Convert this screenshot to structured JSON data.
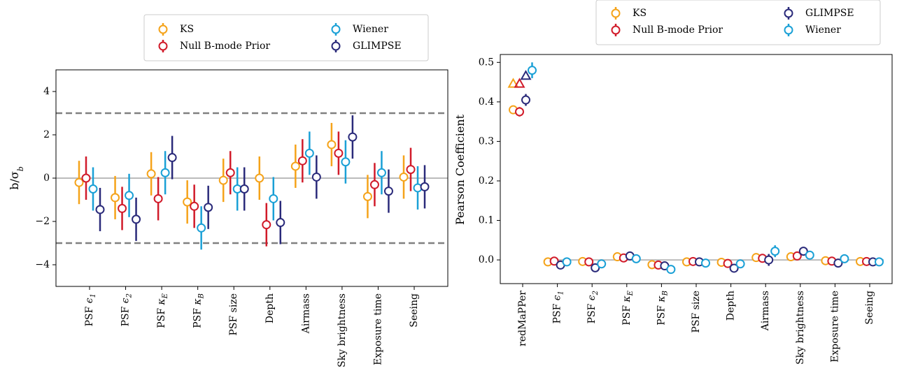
{
  "colors": {
    "KS": "#f5a31a",
    "Null B-mode Prior": "#d11b2a",
    "Wiener": "#1aa0d6",
    "GLIMPSE": "#2a2a7a",
    "reference_line": "#bbbbbb",
    "threshold_line": "#808080"
  },
  "chart_data": [
    {
      "type": "scatter",
      "error_bars": true,
      "ylabel": "b/σ_b",
      "ylabel_main": "b/σ",
      "ylabel_sub": "b",
      "xlabel": "",
      "ylim": [
        -5,
        5
      ],
      "yticks": [
        -4,
        -2,
        0,
        2,
        4
      ],
      "ytick_labels": [
        "−4",
        "−2",
        "0",
        "2",
        "4"
      ],
      "hlines": [
        {
          "y": 0,
          "style": "solid",
          "color": "reference_line"
        },
        {
          "y": 3,
          "style": "dashed",
          "color": "threshold_line"
        },
        {
          "y": -3,
          "style": "dashed",
          "color": "threshold_line"
        }
      ],
      "grid": false,
      "legend_position": "above-right",
      "legend": [
        "KS",
        "Null B-mode Prior",
        "Wiener",
        "GLIMPSE"
      ],
      "categories": [
        {
          "base": "PSF ",
          "math": "ϵ",
          "sub": "1"
        },
        {
          "base": "PSF ",
          "math": "ϵ",
          "sub": "2"
        },
        {
          "base": "PSF ",
          "math": "κ",
          "sub": "E"
        },
        {
          "base": "PSF ",
          "math": "κ",
          "sub": "B"
        },
        {
          "base": "PSF size",
          "math": "",
          "sub": ""
        },
        {
          "base": "Depth",
          "math": "",
          "sub": ""
        },
        {
          "base": "Airmass",
          "math": "",
          "sub": ""
        },
        {
          "base": "Sky brightness",
          "math": "",
          "sub": ""
        },
        {
          "base": "Exposure time",
          "math": "",
          "sub": ""
        },
        {
          "base": "Seeing",
          "math": "",
          "sub": ""
        }
      ],
      "series": [
        {
          "name": "KS",
          "values": [
            -0.2,
            -0.9,
            0.2,
            -1.1,
            -0.1,
            0.0,
            0.55,
            1.55,
            -0.85,
            0.05
          ],
          "errors": [
            1.0,
            1.0,
            1.0,
            1.0,
            1.0,
            1.0,
            1.0,
            1.0,
            1.0,
            1.0
          ]
        },
        {
          "name": "Null B-mode Prior",
          "values": [
            0.0,
            -1.4,
            -0.95,
            -1.3,
            0.25,
            -2.15,
            0.8,
            1.15,
            -0.3,
            0.4
          ],
          "errors": [
            1.0,
            1.0,
            1.0,
            1.0,
            1.0,
            1.0,
            1.0,
            1.0,
            1.0,
            1.0
          ]
        },
        {
          "name": "Wiener",
          "values": [
            -0.5,
            -0.8,
            0.25,
            -2.3,
            -0.5,
            -0.95,
            1.15,
            0.75,
            0.25,
            -0.45
          ],
          "errors": [
            1.0,
            1.0,
            1.0,
            1.0,
            1.0,
            1.0,
            1.0,
            1.0,
            1.0,
            1.0
          ]
        },
        {
          "name": "GLIMPSE",
          "values": [
            -1.45,
            -1.9,
            0.95,
            -1.35,
            -0.5,
            -2.05,
            0.05,
            1.9,
            -0.6,
            -0.4
          ],
          "errors": [
            1.0,
            1.0,
            1.0,
            1.0,
            1.0,
            1.0,
            1.0,
            1.0,
            1.0,
            1.0
          ]
        }
      ]
    },
    {
      "type": "scatter",
      "error_bars": true,
      "ylabel": "Pearson Coefficient",
      "xlabel": "",
      "ylim": [
        -0.06,
        0.52
      ],
      "yticks": [
        0.0,
        0.1,
        0.2,
        0.3,
        0.4,
        0.5
      ],
      "ytick_labels": [
        "0.0",
        "0.1",
        "0.2",
        "0.3",
        "0.4",
        "0.5"
      ],
      "hlines": [
        {
          "y": 0,
          "style": "solid",
          "color": "reference_line",
          "from_category": 1
        }
      ],
      "grid": false,
      "legend_position": "above-right",
      "legend": [
        "KS",
        "Null B-mode Prior",
        "GLIMPSE",
        "Wiener"
      ],
      "categories": [
        {
          "base": "redMaPPer",
          "math": "",
          "sub": ""
        },
        {
          "base": "PSF ",
          "math": "ϵ",
          "sub": "1"
        },
        {
          "base": "PSF ",
          "math": "ϵ",
          "sub": "2"
        },
        {
          "base": "PSF ",
          "math": "κ",
          "sub": "E"
        },
        {
          "base": "PSF ",
          "math": "κ",
          "sub": "B"
        },
        {
          "base": "PSF size",
          "math": "",
          "sub": ""
        },
        {
          "base": "Depth",
          "math": "",
          "sub": ""
        },
        {
          "base": "Airmass",
          "math": "",
          "sub": ""
        },
        {
          "base": "Sky brightness",
          "math": "",
          "sub": ""
        },
        {
          "base": "Exposure time",
          "math": "",
          "sub": ""
        },
        {
          "base": "Seeing",
          "math": "",
          "sub": ""
        }
      ],
      "series": [
        {
          "name": "KS",
          "values": [
            0.38,
            -0.005,
            -0.004,
            0.008,
            -0.012,
            -0.005,
            -0.006,
            0.006,
            0.008,
            -0.002,
            -0.004
          ],
          "errors": [
            0.01,
            0.007,
            0.007,
            0.007,
            0.007,
            0.007,
            0.007,
            0.007,
            0.007,
            0.007,
            0.007
          ]
        },
        {
          "name": "Null B-mode Prior",
          "values": [
            0.375,
            -0.003,
            -0.005,
            0.005,
            -0.013,
            -0.004,
            -0.009,
            0.004,
            0.01,
            -0.003,
            -0.004
          ],
          "errors": [
            0.012,
            0.007,
            0.007,
            0.007,
            0.007,
            0.007,
            0.007,
            0.007,
            0.007,
            0.007,
            0.007
          ]
        },
        {
          "name": "GLIMPSE",
          "values": [
            0.405,
            -0.013,
            -0.02,
            0.01,
            -0.015,
            -0.005,
            -0.021,
            0.0,
            0.022,
            -0.008,
            -0.005
          ],
          "errors": [
            0.015,
            0.008,
            0.008,
            0.008,
            0.008,
            0.008,
            0.008,
            0.015,
            0.008,
            0.008,
            0.008
          ]
        },
        {
          "name": "Wiener",
          "values": [
            0.48,
            -0.005,
            -0.01,
            0.003,
            -0.024,
            -0.008,
            -0.01,
            0.022,
            0.012,
            0.003,
            -0.005
          ],
          "errors": [
            0.02,
            0.007,
            0.007,
            0.007,
            0.007,
            0.007,
            0.007,
            0.015,
            0.007,
            0.007,
            0.007
          ]
        }
      ],
      "markers": [
        {
          "category": 0,
          "series": "KS",
          "shape": "triangle",
          "y": 0.445
        },
        {
          "category": 0,
          "series": "Null B-mode Prior",
          "shape": "triangle",
          "y": 0.445
        },
        {
          "category": 0,
          "series": "GLIMPSE",
          "shape": "triangle",
          "y": 0.465
        }
      ]
    }
  ]
}
